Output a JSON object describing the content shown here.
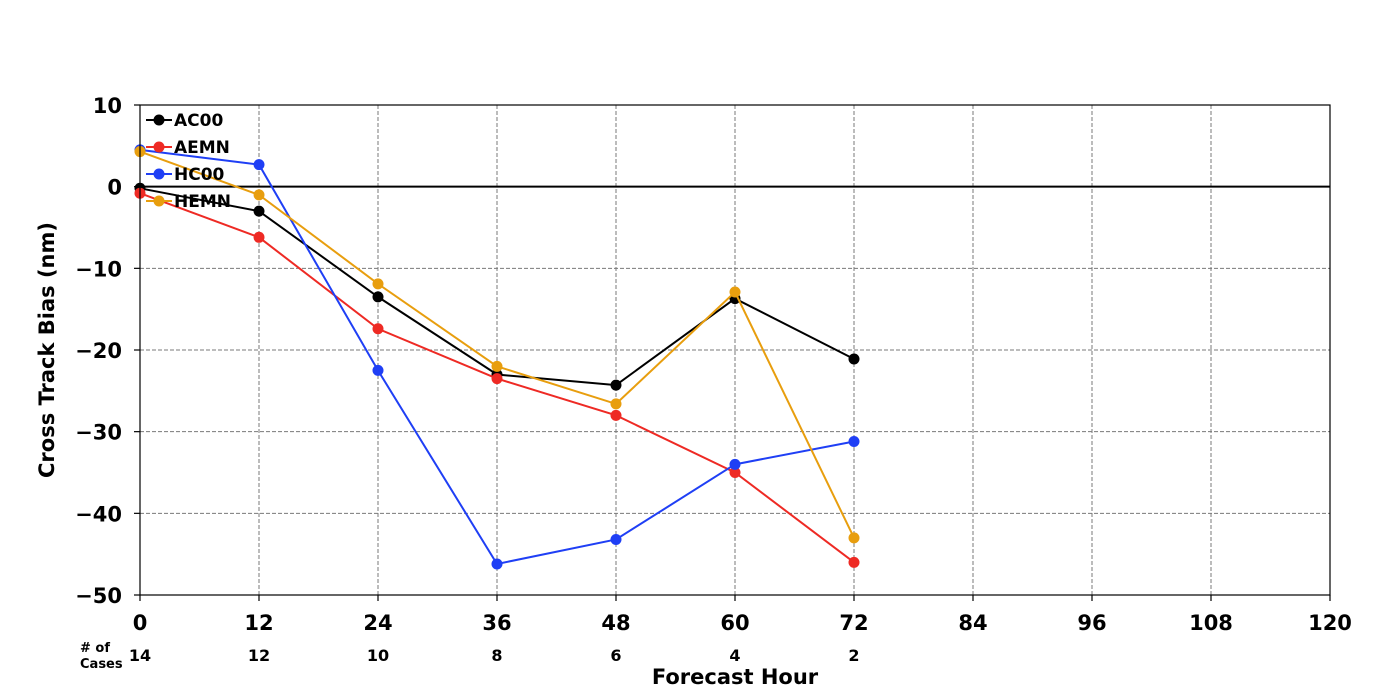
{
  "chart_data": {
    "type": "line",
    "title": "",
    "xlabel": "Forecast Hour",
    "ylabel": "Cross Track Bias (nm)",
    "xlim": [
      0,
      120
    ],
    "ylim": [
      -50,
      10
    ],
    "x_ticks": [
      0,
      12,
      24,
      36,
      48,
      60,
      72,
      84,
      96,
      108,
      120
    ],
    "x_tick_labels": [
      "0",
      "12",
      "24",
      "36",
      "48",
      "60",
      "72",
      "84",
      "96",
      "108",
      "120"
    ],
    "y_ticks": [
      10,
      0,
      -10,
      -20,
      -30,
      -40,
      -50
    ],
    "y_tick_labels": [
      "10",
      "0",
      "−10",
      "−20",
      "−30",
      "−40",
      "−50"
    ],
    "grid": true,
    "zero_line": true,
    "legend_position": "top-left",
    "x": [
      0,
      12,
      24,
      36,
      48,
      60,
      72
    ],
    "series": [
      {
        "name": "AC00",
        "color": "#000000",
        "values": [
          -0.2,
          -3.0,
          -13.5,
          -23.0,
          -24.3,
          -13.7,
          -21.1
        ]
      },
      {
        "name": "AEMN",
        "color": "#ee2a24",
        "values": [
          -0.8,
          -6.2,
          -17.4,
          -23.5,
          -28.0,
          -35.0,
          -46.0
        ]
      },
      {
        "name": "HC00",
        "color": "#1f3ff5",
        "values": [
          4.5,
          2.7,
          -22.5,
          -46.2,
          -43.2,
          -34.0,
          -31.2
        ]
      },
      {
        "name": "HEMN",
        "color": "#e89e0e",
        "values": [
          4.3,
          -1.0,
          -11.9,
          -22.0,
          -26.6,
          -12.9,
          -43.0
        ]
      }
    ],
    "cases": {
      "label_line1": "# of",
      "label_line2": "Cases",
      "x": [
        0,
        12,
        24,
        36,
        48,
        60,
        72
      ],
      "values": [
        "14",
        "12",
        "10",
        "8",
        "6",
        "4",
        "2"
      ]
    }
  }
}
